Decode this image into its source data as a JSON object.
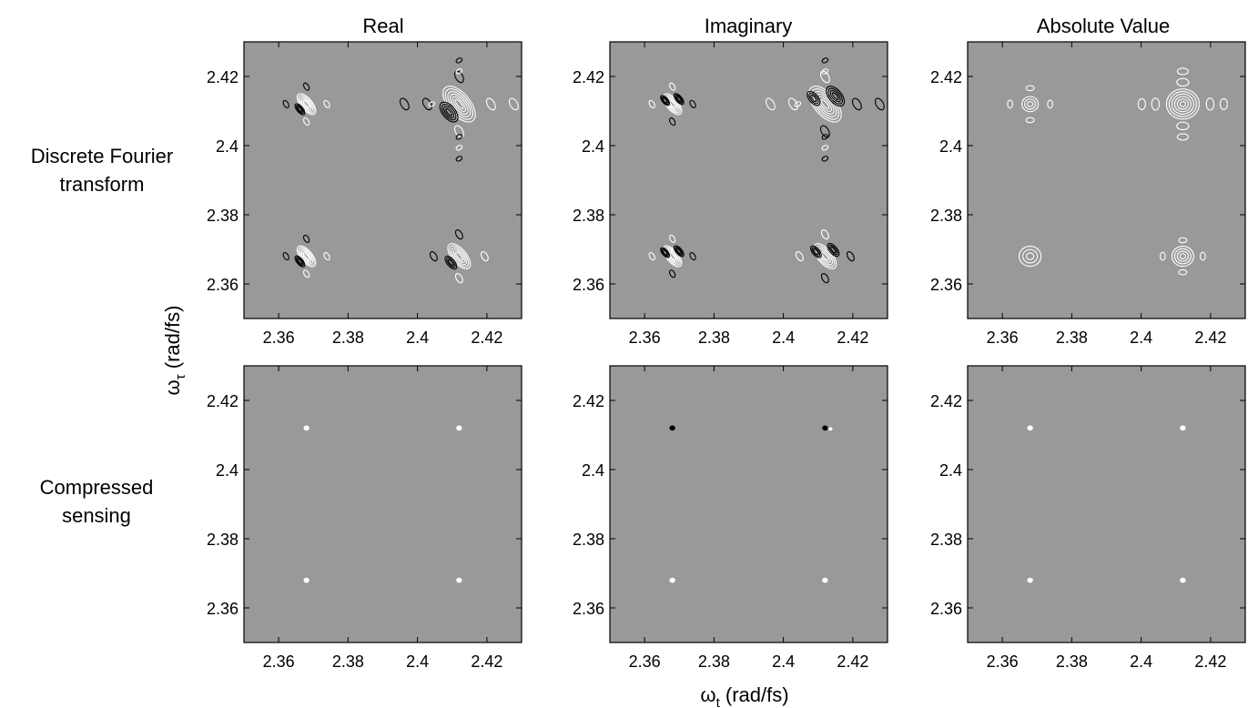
{
  "figure": {
    "column_titles": [
      "Real",
      "Imaginary",
      "Absolute Value"
    ],
    "row_labels": [
      [
        "Discrete Fourier",
        "transform"
      ],
      [
        "Compressed",
        "sensing"
      ]
    ],
    "xlabel_main": "ω",
    "xlabel_sub": "t",
    "xlabel_unit": " (rad/fs)",
    "ylabel_main": "ω",
    "ylabel_sub": "τ",
    "ylabel_unit": " (rad/fs)",
    "colors": {
      "panel_bg": "#999999",
      "positive_contour": "#ffffff",
      "negative_contour": "#000000"
    }
  },
  "chart_data": {
    "type": "contour",
    "xlim": [
      2.35,
      2.43
    ],
    "ylim": [
      2.35,
      2.43
    ],
    "xticks": [
      2.36,
      2.38,
      2.4,
      2.42
    ],
    "yticks": [
      2.36,
      2.38,
      2.4,
      2.42
    ],
    "xtick_labels": [
      "2.36",
      "2.38",
      "2.4",
      "2.42"
    ],
    "ytick_labels": [
      "2.36",
      "2.38",
      "2.4",
      "2.42"
    ],
    "peaks": [
      {
        "x": 2.368,
        "y": 2.412
      },
      {
        "x": 2.412,
        "y": 2.412
      },
      {
        "x": 2.368,
        "y": 2.368
      },
      {
        "x": 2.412,
        "y": 2.368
      }
    ],
    "panels": [
      {
        "row": "Discrete Fourier transform",
        "column": "Real",
        "style": "dft-real"
      },
      {
        "row": "Discrete Fourier transform",
        "column": "Imaginary",
        "style": "dft-imag"
      },
      {
        "row": "Discrete Fourier transform",
        "column": "Absolute Value",
        "style": "dft-abs"
      },
      {
        "row": "Compressed sensing",
        "column": "Real",
        "style": "cs-real"
      },
      {
        "row": "Compressed sensing",
        "column": "Imaginary",
        "style": "cs-imag"
      },
      {
        "row": "Compressed sensing",
        "column": "Absolute Value",
        "style": "cs-abs"
      }
    ]
  }
}
